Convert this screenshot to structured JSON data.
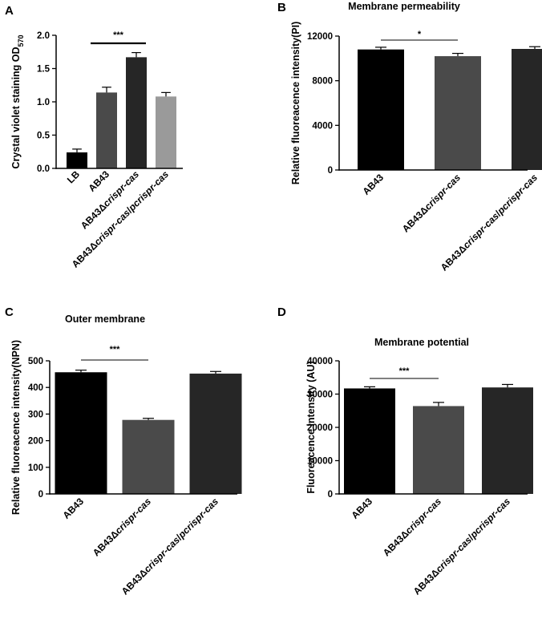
{
  "figure_title": "",
  "chart_data": [
    {
      "panel": "A",
      "type": "bar",
      "title": "",
      "ylabel_main": "Crystal violet staining OD",
      "ylabel_sub": "570",
      "ylim": [
        0,
        2.0
      ],
      "yticks": [
        "0.0",
        "0.5",
        "1.0",
        "1.5",
        "2.0"
      ],
      "categories": [
        {
          "pre": "LB",
          "ital": "",
          "post": ""
        },
        {
          "pre": "AB43",
          "ital": "",
          "post": ""
        },
        {
          "pre": "AB43Δ",
          "ital": "crispr-cas",
          "post": ""
        },
        {
          "pre": "AB43Δ",
          "ital": "crispr-cas",
          "post": "/",
          "ital2": "pcrispr-cas"
        }
      ],
      "values": [
        0.24,
        1.14,
        1.67,
        1.08
      ],
      "errors": [
        0.05,
        0.08,
        0.07,
        0.06
      ],
      "colors": [
        "#000000",
        "#4a4a4a",
        "#262626",
        "#9a9a9a"
      ],
      "significance": [
        {
          "from": 1,
          "to": 2,
          "label": "***"
        }
      ]
    },
    {
      "panel": "B",
      "type": "bar",
      "title": "Membrane permeability",
      "ylabel_main": "Relative fluoreacence intensity(PI)",
      "ylabel_sub": "",
      "ylim": [
        0,
        12000
      ],
      "yticks": [
        "0",
        "4000",
        "8000",
        "12000"
      ],
      "categories": [
        {
          "pre": "AB43",
          "ital": "",
          "post": ""
        },
        {
          "pre": "AB43Δ",
          "ital": "crispr-cas",
          "post": ""
        },
        {
          "pre": "AB43Δ",
          "ital": "crispr-cas",
          "post": "/",
          "ital2": "pcrispr-cas"
        }
      ],
      "values": [
        10800,
        10200,
        10850
      ],
      "errors": [
        200,
        250,
        200
      ],
      "colors": [
        "#000000",
        "#4a4a4a",
        "#262626"
      ],
      "significance": [
        {
          "from": 0,
          "to": 1,
          "label": "*"
        }
      ]
    },
    {
      "panel": "C",
      "type": "bar",
      "title": "Outer membrane",
      "ylabel_main": "Relative fluoreacence intensity(NPN)",
      "ylabel_sub": "",
      "ylim": [
        0,
        500
      ],
      "yticks": [
        "0",
        "100",
        "200",
        "300",
        "400",
        "500"
      ],
      "categories": [
        {
          "pre": "AB43",
          "ital": "",
          "post": ""
        },
        {
          "pre": "AB43Δ",
          "ital": "crispr-cas",
          "post": ""
        },
        {
          "pre": "AB43Δ",
          "ital": "crispr-cas",
          "post": "/",
          "ital2": "pcrispr-cas"
        }
      ],
      "values": [
        457,
        278,
        452
      ],
      "errors": [
        8,
        6,
        8
      ],
      "colors": [
        "#000000",
        "#4a4a4a",
        "#262626"
      ],
      "significance": [
        {
          "from": 0,
          "to": 1,
          "label": "***"
        }
      ]
    },
    {
      "panel": "D",
      "type": "bar",
      "title": "Membrane potential",
      "ylabel_main": "Fluoreacence intensity (AU)",
      "ylabel_sub": "",
      "ylim": [
        0,
        40000
      ],
      "yticks": [
        "0",
        "10000",
        "20000",
        "30000",
        "40000"
      ],
      "categories": [
        {
          "pre": "AB43",
          "ital": "",
          "post": ""
        },
        {
          "pre": "AB43Δ",
          "ital": "crispr-cas",
          "post": ""
        },
        {
          "pre": "AB43Δ",
          "ital": "crispr-cas",
          "post": "/",
          "ital2": "pcrispr-cas"
        }
      ],
      "values": [
        31700,
        26400,
        32000
      ],
      "errors": [
        500,
        1100,
        900
      ],
      "colors": [
        "#000000",
        "#4a4a4a",
        "#262626"
      ],
      "significance": [
        {
          "from": 0,
          "to": 1,
          "label": "***"
        }
      ]
    }
  ]
}
